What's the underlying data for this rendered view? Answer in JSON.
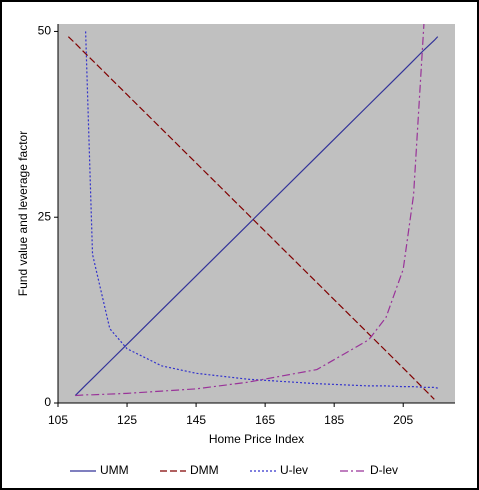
{
  "chart_data": {
    "type": "line",
    "x_label": "Home Price Index",
    "y_label": "Fund value and leverage factor",
    "x": [
      108,
      110,
      113,
      115,
      120,
      125,
      135,
      145,
      160,
      180,
      195,
      200,
      205,
      208,
      211,
      214,
      215
    ],
    "series": [
      {
        "name": "UMM",
        "color": "#333399",
        "dash": "solid",
        "values": [
          null,
          1,
          2.4,
          3.3,
          5.6,
          7.9,
          12.5,
          17.1,
          24,
          33.2,
          40.1,
          42.4,
          44.7,
          46.1,
          47.5,
          48.8,
          49.3
        ]
      },
      {
        "name": "DMM",
        "color": "#800000",
        "dash": "dashed",
        "values": [
          49.3,
          48.4,
          47,
          46.1,
          43.8,
          41.5,
          36.9,
          32.3,
          25.4,
          16.2,
          9.3,
          7,
          4.7,
          3.3,
          1.9,
          0.5,
          null
        ]
      },
      {
        "name": "U-lev",
        "color": "#3333cc",
        "dash": "dotted",
        "values": [
          null,
          null,
          50,
          20,
          10,
          7.3,
          5,
          4,
          3.2,
          2.6,
          2.3,
          2.3,
          2.2,
          2.2,
          2.1,
          2.1,
          2
        ]
      },
      {
        "name": "D-lev",
        "color": "#993399",
        "dash": "dashdot",
        "values": [
          null,
          1,
          1.1,
          1.1,
          1.2,
          1.3,
          1.6,
          1.9,
          2.8,
          4.5,
          8.5,
          11.5,
          18,
          28,
          51,
          null,
          null
        ]
      }
    ],
    "xlim": [
      105,
      220
    ],
    "xticks": [
      105,
      125,
      145,
      165,
      185,
      205
    ],
    "ylim": [
      0,
      51
    ],
    "yticks": [
      0,
      25,
      50
    ],
    "plot_background": "#c0c0c0",
    "legend": "bottom"
  }
}
